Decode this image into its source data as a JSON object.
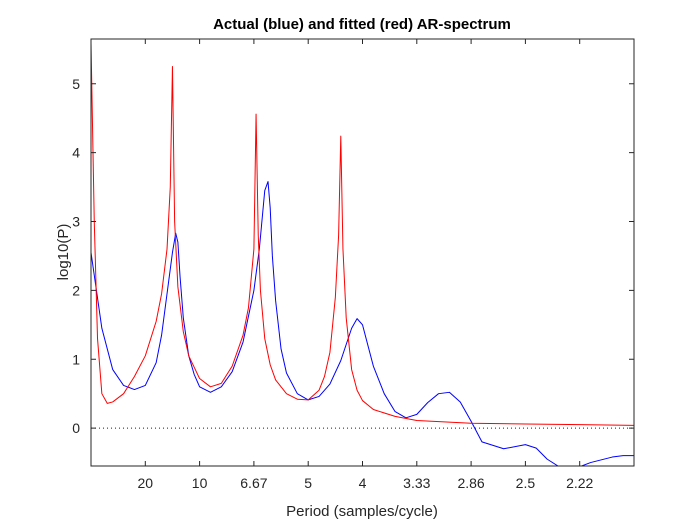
{
  "chart_data": {
    "type": "line",
    "title": "Actual (blue) and fitted (red) AR-spectrum",
    "xlabel": "Period (samples/cycle)",
    "ylabel": "log10(P)",
    "x_quantity": "frequency (cycles/sample)",
    "xlim": [
      0.0,
      0.5
    ],
    "ylim": [
      -0.55,
      5.65
    ],
    "grid": false,
    "x_ticks": [
      {
        "period_label": "20",
        "frequency": 0.05
      },
      {
        "period_label": "10",
        "frequency": 0.1
      },
      {
        "period_label": "6.67",
        "frequency": 0.15
      },
      {
        "period_label": "5",
        "frequency": 0.2
      },
      {
        "period_label": "4",
        "frequency": 0.25
      },
      {
        "period_label": "3.33",
        "frequency": 0.3
      },
      {
        "period_label": "2.86",
        "frequency": 0.35
      },
      {
        "period_label": "2.5",
        "frequency": 0.4
      },
      {
        "period_label": "2.22",
        "frequency": 0.45
      }
    ],
    "y_ticks": [
      0,
      1,
      2,
      3,
      4,
      5
    ],
    "reference_line": {
      "y": 0,
      "style": "dotted",
      "color": "#0000ff"
    },
    "series": [
      {
        "color": "#0000ff",
        "x": [
          0.0,
          0.01,
          0.02,
          0.03,
          0.04,
          0.05,
          0.06,
          0.065,
          0.07,
          0.075,
          0.078,
          0.08,
          0.082,
          0.085,
          0.09,
          0.095,
          0.1,
          0.11,
          0.12,
          0.13,
          0.14,
          0.15,
          0.155,
          0.16,
          0.163,
          0.165,
          0.167,
          0.17,
          0.175,
          0.18,
          0.19,
          0.2,
          0.21,
          0.22,
          0.23,
          0.24,
          0.245,
          0.25,
          0.255,
          0.26,
          0.27,
          0.28,
          0.29,
          0.3,
          0.31,
          0.32,
          0.33,
          0.34,
          0.35,
          0.36,
          0.38,
          0.4,
          0.41,
          0.42,
          0.43,
          0.44,
          0.45,
          0.46,
          0.47,
          0.48,
          0.49,
          0.5
        ],
        "y": [
          2.55,
          1.45,
          0.85,
          0.62,
          0.56,
          0.62,
          0.95,
          1.35,
          1.95,
          2.55,
          2.83,
          2.7,
          2.2,
          1.6,
          1.05,
          0.78,
          0.6,
          0.52,
          0.6,
          0.82,
          1.25,
          2.0,
          2.6,
          3.45,
          3.58,
          3.2,
          2.5,
          1.85,
          1.15,
          0.8,
          0.5,
          0.41,
          0.46,
          0.64,
          0.98,
          1.45,
          1.59,
          1.5,
          1.2,
          0.9,
          0.5,
          0.24,
          0.15,
          0.2,
          0.37,
          0.5,
          0.52,
          0.38,
          0.1,
          -0.2,
          -0.3,
          -0.24,
          -0.29,
          -0.45,
          -0.55,
          -0.57,
          -0.56,
          -0.5,
          -0.46,
          -0.42,
          -0.4,
          -0.4
        ]
      },
      {
        "color": "#ff0000",
        "x": [
          0.0,
          0.003,
          0.006,
          0.01,
          0.015,
          0.02,
          0.03,
          0.04,
          0.05,
          0.06,
          0.065,
          0.07,
          0.073,
          0.075,
          0.077,
          0.08,
          0.085,
          0.09,
          0.1,
          0.11,
          0.12,
          0.13,
          0.14,
          0.145,
          0.15,
          0.152,
          0.154,
          0.156,
          0.16,
          0.165,
          0.17,
          0.18,
          0.19,
          0.2,
          0.21,
          0.215,
          0.22,
          0.225,
          0.228,
          0.23,
          0.232,
          0.235,
          0.24,
          0.245,
          0.25,
          0.26,
          0.28,
          0.3,
          0.35,
          0.4,
          0.45,
          0.5
        ],
        "y": [
          5.6,
          3.0,
          1.3,
          0.5,
          0.36,
          0.38,
          0.5,
          0.75,
          1.05,
          1.55,
          1.95,
          2.6,
          3.5,
          5.25,
          3.0,
          2.05,
          1.4,
          1.05,
          0.72,
          0.6,
          0.65,
          0.9,
          1.35,
          1.75,
          2.6,
          4.56,
          2.8,
          2.0,
          1.3,
          0.92,
          0.7,
          0.5,
          0.42,
          0.41,
          0.55,
          0.75,
          1.1,
          1.9,
          2.8,
          4.24,
          2.6,
          1.6,
          0.85,
          0.55,
          0.4,
          0.27,
          0.17,
          0.11,
          0.07,
          0.06,
          0.05,
          0.04
        ]
      }
    ]
  }
}
